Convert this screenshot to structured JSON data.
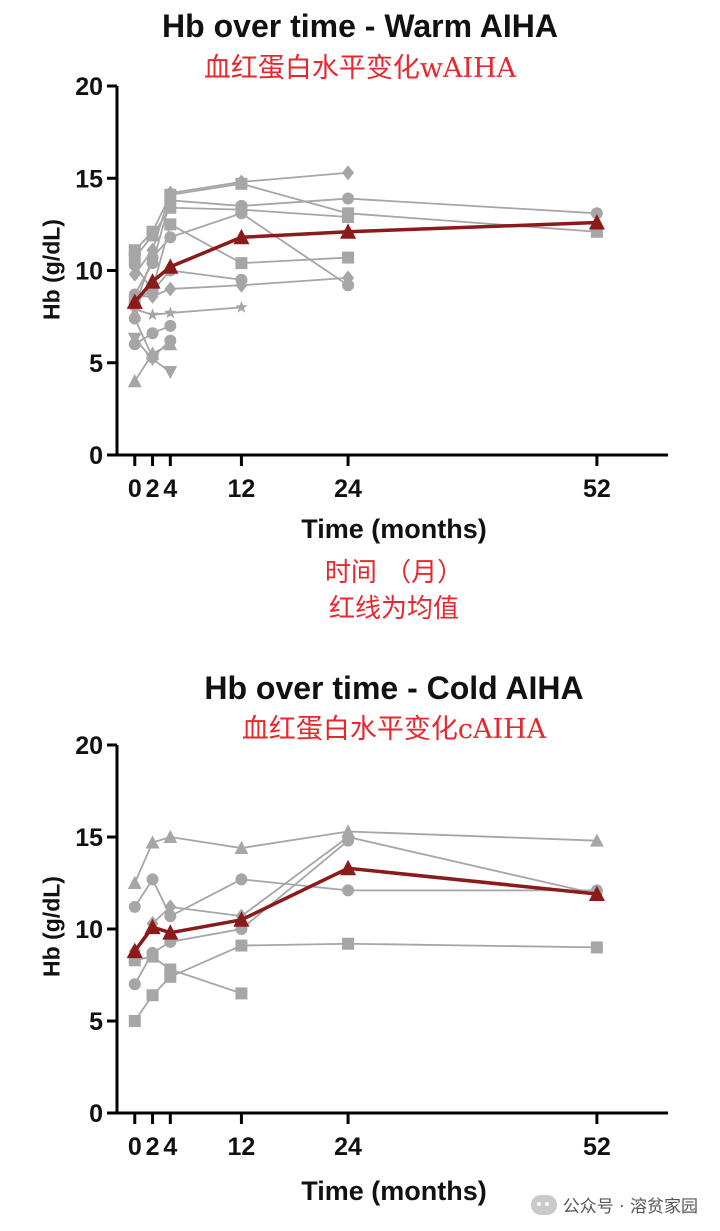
{
  "chart_data": [
    {
      "type": "line",
      "title": "Hb over time - Warm AIHA",
      "subtitle": "血红蛋白水平变化wAIHA",
      "xlabel": "Time (months)",
      "xlabel_cn_1": "时间 （月）",
      "xlabel_cn_2": "红线为均值",
      "ylabel": "Hb (g/dL)",
      "x_ticks": [
        0,
        2,
        4,
        12,
        24,
        52
      ],
      "y_ticks": [
        0,
        5,
        10,
        15,
        20
      ],
      "xlim": [
        -2,
        60
      ],
      "ylim": [
        0,
        20
      ],
      "colors": {
        "individual": "#a6a6a6",
        "mean": "#8b1a1a"
      },
      "mean_series": {
        "name": "mean",
        "x": [
          0,
          2,
          4,
          12,
          24,
          52
        ],
        "y": [
          8.3,
          9.4,
          10.2,
          11.8,
          12.1,
          12.6
        ]
      },
      "individual_series": [
        {
          "x": [
            0,
            2,
            4,
            12,
            24,
            52
          ],
          "y": [
            11.1,
            12.1,
            14.1,
            14.7,
            13.1,
            12.1
          ],
          "marker": "square"
        },
        {
          "x": [
            0,
            2,
            4,
            12,
            24
          ],
          "y": [
            10.7,
            11.9,
            13.4,
            13.3,
            12.9
          ],
          "marker": "square"
        },
        {
          "x": [
            0,
            2,
            4,
            12,
            24
          ],
          "y": [
            9.8,
            11.1,
            14.2,
            14.8,
            15.3
          ],
          "marker": "diamond"
        },
        {
          "x": [
            0,
            2,
            4,
            12,
            24,
            52
          ],
          "y": [
            8.7,
            10.4,
            13.8,
            13.5,
            13.9,
            13.1
          ],
          "marker": "circle"
        },
        {
          "x": [
            0,
            2,
            4,
            12,
            24
          ],
          "y": [
            8.3,
            9.0,
            12.5,
            10.4,
            10.7
          ],
          "marker": "square"
        },
        {
          "x": [
            0,
            2,
            4,
            12,
            24
          ],
          "y": [
            8.1,
            10.7,
            11.8,
            13.1,
            9.2
          ],
          "marker": "circle"
        },
        {
          "x": [
            0,
            2,
            4,
            12,
            24
          ],
          "y": [
            8.6,
            8.6,
            9.0,
            9.2,
            9.6
          ],
          "marker": "diamond"
        },
        {
          "x": [
            0,
            2,
            4,
            12
          ],
          "y": [
            10.3,
            8.9,
            10.0,
            9.5
          ],
          "marker": "circle"
        },
        {
          "x": [
            0,
            2,
            4,
            12
          ],
          "y": [
            7.9,
            7.6,
            7.7,
            8.0
          ],
          "marker": "star"
        },
        {
          "x": [
            0,
            2,
            4
          ],
          "y": [
            7.4,
            5.3,
            6.2
          ],
          "marker": "circle"
        },
        {
          "x": [
            0,
            2,
            4
          ],
          "y": [
            6.3,
            5.2,
            4.5
          ],
          "marker": "triangle-down"
        },
        {
          "x": [
            0,
            2,
            4
          ],
          "y": [
            4.0,
            5.5,
            6.0
          ],
          "marker": "triangle"
        },
        {
          "x": [
            0,
            2,
            4
          ],
          "y": [
            6.0,
            6.6,
            7.0
          ],
          "marker": "circle"
        }
      ]
    },
    {
      "type": "line",
      "title": "Hb over time -  Cold AIHA",
      "subtitle": "血红蛋白水平变化cAIHA",
      "xlabel": "Time (months)",
      "ylabel": "Hb (g/dL)",
      "x_ticks": [
        0,
        2,
        4,
        12,
        24,
        52
      ],
      "y_ticks": [
        0,
        5,
        10,
        15,
        20
      ],
      "xlim": [
        -2,
        60
      ],
      "ylim": [
        0,
        20
      ],
      "colors": {
        "individual": "#a6a6a6",
        "mean": "#8b1a1a"
      },
      "mean_series": {
        "name": "mean",
        "x": [
          0,
          2,
          4,
          12,
          24,
          52
        ],
        "y": [
          8.8,
          10.1,
          9.8,
          10.5,
          13.3,
          11.9
        ]
      },
      "individual_series": [
        {
          "x": [
            0,
            2,
            4,
            12,
            24,
            52
          ],
          "y": [
            12.5,
            14.7,
            15.0,
            14.4,
            15.3,
            14.8
          ],
          "marker": "triangle"
        },
        {
          "x": [
            0,
            2,
            4,
            12,
            24,
            52
          ],
          "y": [
            11.2,
            12.7,
            10.7,
            12.7,
            12.1,
            12.1
          ],
          "marker": "circle"
        },
        {
          "x": [
            0,
            2,
            4,
            12,
            24,
            52
          ],
          "y": [
            8.8,
            10.3,
            11.2,
            10.7,
            15.0,
            11.9
          ],
          "marker": "diamond"
        },
        {
          "x": [
            0,
            2,
            4,
            12,
            24
          ],
          "y": [
            7.0,
            8.7,
            9.3,
            10.0,
            14.8
          ],
          "marker": "circle"
        },
        {
          "x": [
            0,
            2,
            4,
            12,
            24,
            52
          ],
          "y": [
            5.0,
            6.4,
            7.4,
            9.1,
            9.2,
            9.0
          ],
          "marker": "square"
        },
        {
          "x": [
            0,
            2,
            4,
            12
          ],
          "y": [
            8.3,
            8.5,
            7.8,
            6.5
          ],
          "marker": "square"
        }
      ]
    }
  ],
  "watermark": {
    "text": "公众号 · 溶贫家园",
    "icon": "wechat-icon"
  }
}
